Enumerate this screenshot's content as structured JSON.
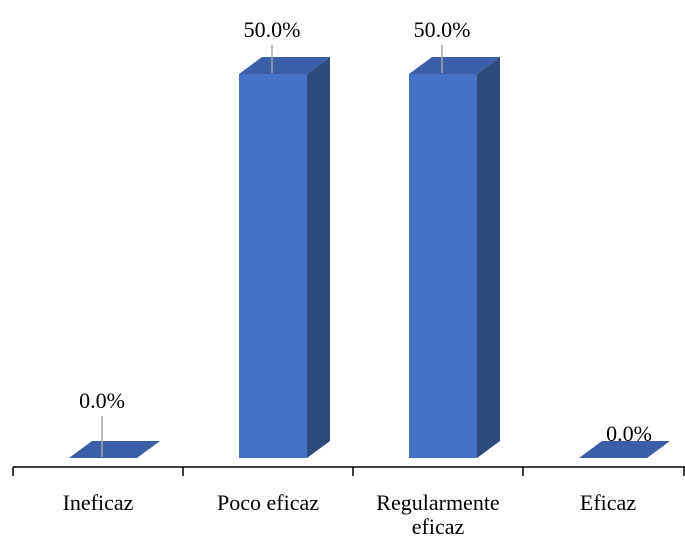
{
  "chart_data": {
    "type": "bar",
    "style": "3d-column",
    "categories": [
      "Ineficaz",
      "Poco eficaz",
      "Regularmente eficaz",
      "Eficaz"
    ],
    "category_lines": [
      [
        "Ineficaz"
      ],
      [
        "Poco eficaz"
      ],
      [
        "Regularmente",
        "eficaz"
      ],
      [
        "Eficaz"
      ]
    ],
    "values": [
      0.0,
      50.0,
      50.0,
      0.0
    ],
    "data_labels": [
      "0.0%",
      "50.0%",
      "50.0%",
      "0.0%"
    ],
    "unit": "%",
    "ylim": [
      0,
      55
    ],
    "y_axis_visible": false,
    "grid": false,
    "legend": "none",
    "title": "",
    "xlabel": "",
    "ylabel": "",
    "colors": {
      "front": "#4472C4",
      "side": "#2E4B7E",
      "top": "#3A5FA6",
      "axis": "#000000",
      "leader": "#A6A6A6",
      "text": "#000000"
    }
  }
}
